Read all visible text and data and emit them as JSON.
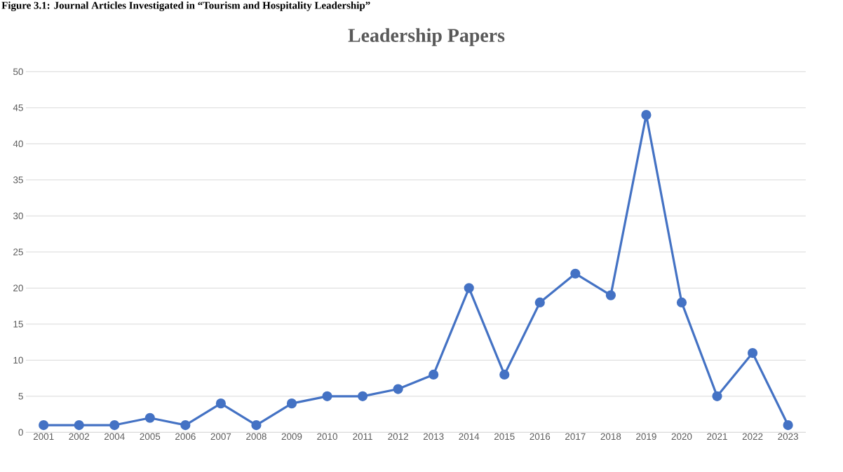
{
  "chart_data": {
    "type": "line",
    "title": "Leadership Papers",
    "annotations": [
      "Figure 3.1: Journal Articles Investigated in “Tourism and Hospitality Leadership”"
    ],
    "categories": [
      "2001",
      "2002",
      "2004",
      "2005",
      "2006",
      "2007",
      "2008",
      "2009",
      "2010",
      "2011",
      "2012",
      "2013",
      "2014",
      "2015",
      "2016",
      "2017",
      "2018",
      "2019",
      "2020",
      "2021",
      "2022",
      "2023"
    ],
    "series": [
      {
        "color": "#4472c4",
        "values": [
          1,
          1,
          1,
          2,
          1,
          4,
          1,
          4,
          5,
          5,
          6,
          8,
          20,
          8,
          18,
          22,
          19,
          44,
          18,
          5,
          11,
          1
        ]
      }
    ],
    "ylim": [
      0,
      50
    ],
    "yticks": [
      0,
      5,
      10,
      15,
      20,
      25,
      30,
      35,
      40,
      45,
      50
    ],
    "grid": "y",
    "marker": "circle",
    "line_style": "solid"
  }
}
